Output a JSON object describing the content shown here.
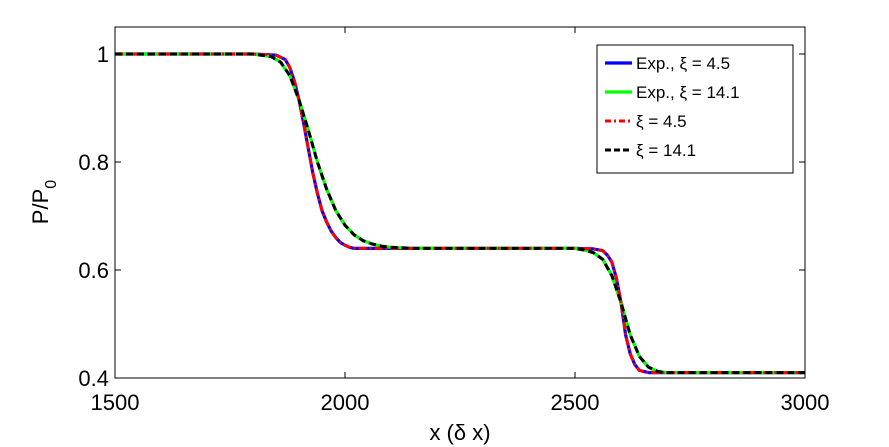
{
  "chart_data": {
    "type": "line",
    "xlabel": "x (δ x)",
    "ylabel_main": "P/P",
    "ylabel_sub": "0",
    "xlim": [
      1500,
      3000
    ],
    "ylim": [
      0.4,
      1.05
    ],
    "xticks": [
      1500,
      2000,
      2500,
      3000
    ],
    "yticks": [
      0.4,
      0.6,
      0.8,
      1
    ],
    "ytick_labels": [
      "0.4",
      "0.6",
      "0.8",
      "1"
    ],
    "grid": false,
    "legend_position": "top-right",
    "series": [
      {
        "name": "Exp., ξ = 4.5",
        "color": "#0000ff",
        "style": "solid",
        "x": [
          1500,
          1800,
          1850,
          1870,
          1880,
          1890,
          1900,
          1910,
          1920,
          1930,
          1940,
          1950,
          1960,
          1970,
          1980,
          1990,
          2000,
          2010,
          2020,
          2040,
          2060,
          2100,
          2200,
          2400,
          2500,
          2540,
          2560,
          2570,
          2580,
          2590,
          2600,
          2610,
          2620,
          2630,
          2640,
          2660,
          2700,
          3000
        ],
        "y": [
          1.0,
          1.0,
          0.998,
          0.99,
          0.975,
          0.95,
          0.915,
          0.872,
          0.826,
          0.78,
          0.742,
          0.71,
          0.689,
          0.672,
          0.66,
          0.651,
          0.646,
          0.642,
          0.64,
          0.64,
          0.64,
          0.64,
          0.64,
          0.64,
          0.64,
          0.639,
          0.636,
          0.628,
          0.615,
          0.585,
          0.54,
          0.48,
          0.445,
          0.425,
          0.414,
          0.41,
          0.41,
          0.41
        ]
      },
      {
        "name": "Exp., ξ = 14.1",
        "color": "#00ff00",
        "style": "solid",
        "x": [
          1500,
          1800,
          1840,
          1860,
          1880,
          1900,
          1920,
          1940,
          1960,
          1980,
          2000,
          2020,
          2040,
          2060,
          2080,
          2100,
          2150,
          2200,
          2400,
          2500,
          2520,
          2540,
          2560,
          2580,
          2600,
          2620,
          2640,
          2660,
          2680,
          2700,
          3000
        ],
        "y": [
          1.0,
          1.0,
          0.995,
          0.985,
          0.96,
          0.915,
          0.86,
          0.8,
          0.75,
          0.71,
          0.683,
          0.665,
          0.654,
          0.648,
          0.644,
          0.642,
          0.64,
          0.64,
          0.64,
          0.64,
          0.637,
          0.632,
          0.62,
          0.59,
          0.54,
          0.48,
          0.44,
          0.42,
          0.412,
          0.41,
          0.41
        ]
      },
      {
        "name": "ξ = 4.5",
        "color": "#ff0000",
        "style": "dashdot",
        "x": [
          1500,
          1800,
          1850,
          1870,
          1880,
          1890,
          1900,
          1910,
          1920,
          1930,
          1940,
          1950,
          1960,
          1970,
          1980,
          1990,
          2000,
          2010,
          2020,
          2040,
          2060,
          2100,
          2200,
          2400,
          2500,
          2540,
          2560,
          2570,
          2580,
          2590,
          2600,
          2610,
          2620,
          2630,
          2640,
          2660,
          2700,
          3000
        ],
        "y": [
          1.0,
          1.0,
          0.998,
          0.99,
          0.975,
          0.95,
          0.915,
          0.872,
          0.826,
          0.78,
          0.742,
          0.71,
          0.689,
          0.672,
          0.66,
          0.651,
          0.646,
          0.642,
          0.64,
          0.64,
          0.64,
          0.64,
          0.64,
          0.64,
          0.64,
          0.639,
          0.636,
          0.628,
          0.615,
          0.585,
          0.54,
          0.48,
          0.445,
          0.425,
          0.414,
          0.41,
          0.41,
          0.41
        ]
      },
      {
        "name": "ξ = 14.1",
        "color": "#000000",
        "style": "dashed",
        "x": [
          1500,
          1800,
          1840,
          1860,
          1880,
          1900,
          1920,
          1940,
          1960,
          1980,
          2000,
          2020,
          2040,
          2060,
          2080,
          2100,
          2150,
          2200,
          2400,
          2500,
          2520,
          2540,
          2560,
          2580,
          2600,
          2620,
          2640,
          2660,
          2680,
          2700,
          3000
        ],
        "y": [
          1.0,
          1.0,
          0.995,
          0.985,
          0.96,
          0.915,
          0.86,
          0.8,
          0.75,
          0.71,
          0.683,
          0.665,
          0.654,
          0.648,
          0.644,
          0.642,
          0.64,
          0.64,
          0.64,
          0.64,
          0.637,
          0.632,
          0.62,
          0.59,
          0.54,
          0.48,
          0.44,
          0.42,
          0.412,
          0.41,
          0.41
        ]
      }
    ]
  }
}
